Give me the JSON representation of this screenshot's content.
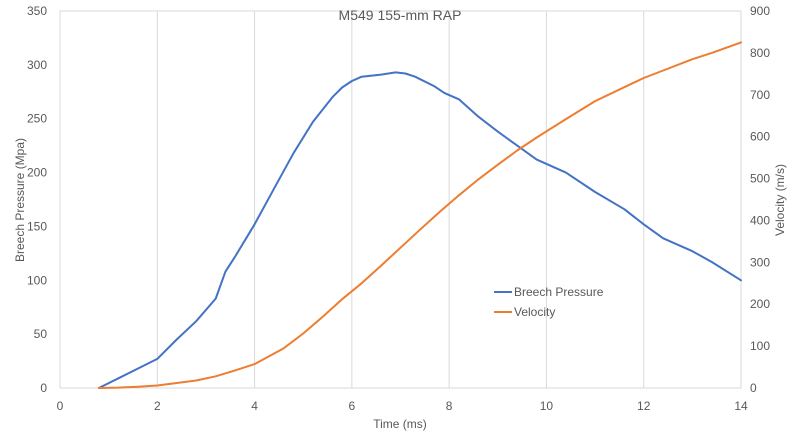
{
  "chart_data": {
    "type": "line",
    "title": "M549 155-mm RAP",
    "xlabel": "Time (ms)",
    "ylabel": "Breech Pressure (Mpa)",
    "y2label": "Velocity (m/s)",
    "xlim": [
      0,
      14
    ],
    "ylim": [
      0,
      350
    ],
    "y2lim": [
      0,
      900
    ],
    "xticks": [
      "0",
      "2",
      "4",
      "6",
      "8",
      "10",
      "12",
      "14"
    ],
    "yticks": [
      "0",
      "50",
      "100",
      "150",
      "200",
      "250",
      "300",
      "350"
    ],
    "y2ticks": [
      "0",
      "100",
      "200",
      "300",
      "400",
      "500",
      "600",
      "700",
      "800",
      "900"
    ],
    "grid": "vertical",
    "legend_position": "center-right",
    "series": [
      {
        "name": "Breech Pressure",
        "axis": "left",
        "color": "#4472c4",
        "points": [
          [
            0.8,
            0
          ],
          [
            1.2,
            9
          ],
          [
            1.6,
            18
          ],
          [
            2.0,
            27
          ],
          [
            2.4,
            45
          ],
          [
            2.8,
            62
          ],
          [
            3.2,
            83
          ],
          [
            3.4,
            108
          ],
          [
            3.6,
            122
          ],
          [
            4.0,
            152
          ],
          [
            4.4,
            185
          ],
          [
            4.8,
            218
          ],
          [
            5.2,
            247
          ],
          [
            5.6,
            270
          ],
          [
            5.8,
            279
          ],
          [
            6.0,
            285
          ],
          [
            6.2,
            289
          ],
          [
            6.6,
            291
          ],
          [
            6.9,
            293
          ],
          [
            7.1,
            292
          ],
          [
            7.3,
            289
          ],
          [
            7.7,
            280
          ],
          [
            7.9,
            274
          ],
          [
            8.2,
            268
          ],
          [
            8.6,
            252
          ],
          [
            9.0,
            238
          ],
          [
            9.4,
            225
          ],
          [
            9.8,
            212
          ],
          [
            10.4,
            200
          ],
          [
            11.0,
            182
          ],
          [
            11.6,
            166
          ],
          [
            12.0,
            152
          ],
          [
            12.4,
            139
          ],
          [
            13.0,
            127
          ],
          [
            13.4,
            117
          ],
          [
            14.0,
            100
          ]
        ]
      },
      {
        "name": "Velocity",
        "axis": "right",
        "color": "#ed7d31",
        "points": [
          [
            0.8,
            0
          ],
          [
            1.2,
            1
          ],
          [
            1.6,
            3
          ],
          [
            2.0,
            6
          ],
          [
            2.4,
            12
          ],
          [
            2.8,
            18
          ],
          [
            3.2,
            28
          ],
          [
            3.6,
            42
          ],
          [
            4.0,
            57
          ],
          [
            4.6,
            95
          ],
          [
            5.0,
            130
          ],
          [
            5.4,
            170
          ],
          [
            5.8,
            212
          ],
          [
            6.2,
            250
          ],
          [
            6.6,
            292
          ],
          [
            7.0,
            335
          ],
          [
            7.4,
            378
          ],
          [
            7.8,
            420
          ],
          [
            8.2,
            460
          ],
          [
            8.6,
            498
          ],
          [
            9.0,
            533
          ],
          [
            9.4,
            567
          ],
          [
            9.8,
            598
          ],
          [
            10.4,
            642
          ],
          [
            11.0,
            685
          ],
          [
            11.6,
            718
          ],
          [
            12.0,
            740
          ],
          [
            12.4,
            758
          ],
          [
            13.0,
            785
          ],
          [
            13.4,
            800
          ],
          [
            14.0,
            825
          ]
        ]
      }
    ]
  }
}
